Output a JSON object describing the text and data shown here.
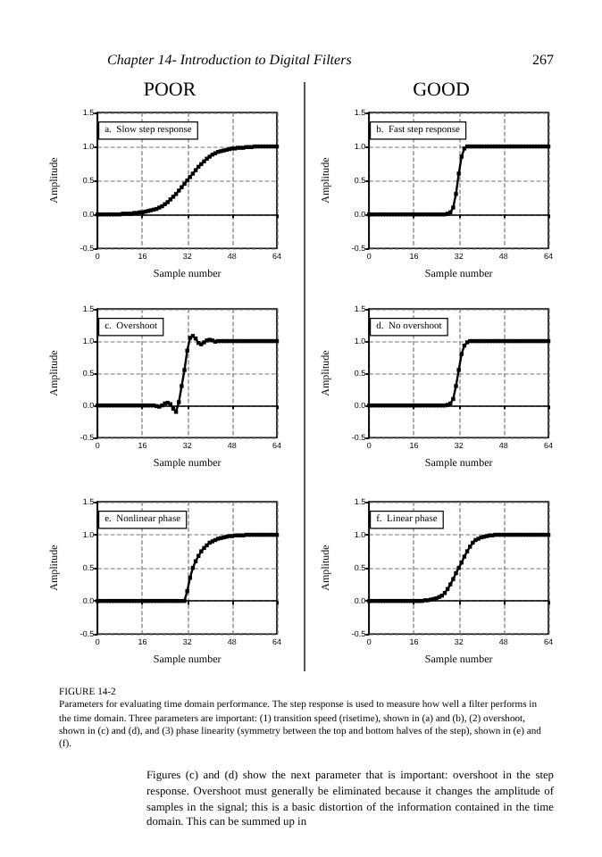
{
  "chart_data": [
    {
      "type": "line",
      "title": "POOR",
      "subtitle": "a.  Slow step response",
      "xlabel": "Sample number",
      "ylabel": "Amplitude",
      "annotations": [
        "Chapter 14- Introduction to Digital Filters",
        "267"
      ],
      "xlim": [
        0,
        64
      ],
      "xticks": [
        0,
        16,
        32,
        48,
        64
      ],
      "ylim": [
        -0.5,
        1.5
      ],
      "yticks": [
        {
          "value": -0.5,
          "label": "-0.5"
        },
        {
          "value": 0,
          "label": "0.0"
        },
        {
          "value": 0.5,
          "label": "0.5"
        },
        {
          "value": 1,
          "label": "1.0"
        },
        {
          "value": 1.5,
          "label": "1.5"
        }
      ],
      "grid": true,
      "marker": "square",
      "line_style": "solid",
      "x": [
        0,
        1,
        2,
        3,
        4,
        5,
        6,
        7,
        8,
        9,
        10,
        11,
        12,
        13,
        14,
        15,
        16,
        17,
        18,
        19,
        20,
        21,
        22,
        23,
        24,
        25,
        26,
        27,
        28,
        29,
        30,
        31,
        32,
        33,
        34,
        35,
        36,
        37,
        38,
        39,
        40,
        41,
        42,
        43,
        44,
        45,
        46,
        47,
        48,
        49,
        50,
        51,
        52,
        53,
        54,
        55,
        56,
        57,
        58,
        59,
        60,
        61,
        62,
        63,
        64
      ],
      "series": [
        {
          "color": "#000000",
          "values": [
            0,
            0,
            0,
            0,
            0,
            0,
            0,
            0,
            0,
            0.01,
            0.01,
            0.01,
            0.01,
            0.02,
            0.02,
            0.03,
            0.03,
            0.04,
            0.05,
            0.06,
            0.07,
            0.08,
            0.1,
            0.12,
            0.15,
            0.18,
            0.22,
            0.26,
            0.3,
            0.35,
            0.4,
            0.45,
            0.5,
            0.55,
            0.6,
            0.65,
            0.7,
            0.74,
            0.78,
            0.82,
            0.85,
            0.88,
            0.9,
            0.92,
            0.93,
            0.94,
            0.95,
            0.96,
            0.97,
            0.97,
            0.98,
            0.98,
            0.98,
            0.99,
            0.99,
            0.99,
            1,
            1,
            1,
            1,
            1,
            1,
            1,
            1,
            1
          ]
        }
      ]
    },
    {
      "type": "line",
      "title": "GOOD",
      "subtitle": "b.  Fast step response",
      "xlabel": "Sample number",
      "ylabel": "Amplitude",
      "xlim": [
        0,
        64
      ],
      "xticks": [
        0,
        16,
        32,
        48,
        64
      ],
      "ylim": [
        -0.5,
        1.5
      ],
      "yticks": [
        {
          "value": -0.5,
          "label": "-0.5"
        },
        {
          "value": 0,
          "label": "0.0"
        },
        {
          "value": 0.5,
          "label": "0.5"
        },
        {
          "value": 1,
          "label": "1.0"
        },
        {
          "value": 1.5,
          "label": "1.5"
        }
      ],
      "grid": true,
      "marker": "square",
      "line_style": "solid",
      "x": [
        0,
        1,
        2,
        3,
        4,
        5,
        6,
        7,
        8,
        9,
        10,
        11,
        12,
        13,
        14,
        15,
        16,
        17,
        18,
        19,
        20,
        21,
        22,
        23,
        24,
        25,
        26,
        27,
        28,
        29,
        30,
        31,
        32,
        33,
        34,
        35,
        36,
        37,
        38,
        39,
        40,
        41,
        42,
        43,
        44,
        45,
        46,
        47,
        48,
        49,
        50,
        51,
        52,
        53,
        54,
        55,
        56,
        57,
        58,
        59,
        60,
        61,
        62,
        63,
        64
      ],
      "series": [
        {
          "color": "#000000",
          "values": [
            0,
            0,
            0,
            0,
            0,
            0,
            0,
            0,
            0,
            0,
            0,
            0,
            0,
            0,
            0,
            0,
            0,
            0,
            0,
            0,
            0,
            0,
            0,
            0,
            0,
            0,
            0,
            0,
            0.01,
            0.03,
            0.1,
            0.3,
            0.6,
            0.85,
            0.97,
            1,
            1,
            1,
            1,
            1,
            1,
            1,
            1,
            1,
            1,
            1,
            1,
            1,
            1,
            1,
            1,
            1,
            1,
            1,
            1,
            1,
            1,
            1,
            1,
            1,
            1,
            1,
            1,
            1,
            1
          ]
        }
      ]
    },
    {
      "type": "line",
      "subtitle": "c.  Overshoot",
      "xlabel": "Sample number",
      "ylabel": "Amplitude",
      "xlim": [
        0,
        64
      ],
      "xticks": [
        0,
        16,
        32,
        48,
        64
      ],
      "ylim": [
        -0.5,
        1.5
      ],
      "yticks": [
        {
          "value": -0.5,
          "label": "-0.5"
        },
        {
          "value": 0,
          "label": "0.0"
        },
        {
          "value": 0.5,
          "label": "0.5"
        },
        {
          "value": 1,
          "label": "1.0"
        },
        {
          "value": 1.5,
          "label": "1.5"
        }
      ],
      "grid": true,
      "marker": "square",
      "line_style": "solid",
      "x": [
        0,
        1,
        2,
        3,
        4,
        5,
        6,
        7,
        8,
        9,
        10,
        11,
        12,
        13,
        14,
        15,
        16,
        17,
        18,
        19,
        20,
        21,
        22,
        23,
        24,
        25,
        26,
        27,
        28,
        29,
        30,
        31,
        32,
        33,
        34,
        35,
        36,
        37,
        38,
        39,
        40,
        41,
        42,
        43,
        44,
        45,
        46,
        47,
        48,
        49,
        50,
        51,
        52,
        53,
        54,
        55,
        56,
        57,
        58,
        59,
        60,
        61,
        62,
        63,
        64
      ],
      "series": [
        {
          "color": "#000000",
          "values": [
            0,
            0,
            0,
            0,
            0,
            0,
            0,
            0,
            0,
            0,
            0,
            0,
            0,
            0,
            0,
            0,
            0,
            0,
            0,
            0,
            0,
            -0.01,
            -0.02,
            0,
            0.03,
            0.04,
            0.02,
            -0.05,
            -0.1,
            0.05,
            0.3,
            0.55,
            0.85,
            1.05,
            1.08,
            1.04,
            0.97,
            0.95,
            0.98,
            1.01,
            1.02,
            1.01,
            0.99,
            1,
            1,
            1,
            1,
            1,
            1,
            1,
            1,
            1,
            1,
            1,
            1,
            1,
            1,
            1,
            1,
            1,
            1,
            1,
            1,
            1,
            1
          ]
        }
      ]
    },
    {
      "type": "line",
      "subtitle": "d.  No overshoot",
      "xlabel": "Sample number",
      "ylabel": "Amplitude",
      "xlim": [
        0,
        64
      ],
      "xticks": [
        0,
        16,
        32,
        48,
        64
      ],
      "ylim": [
        -0.5,
        1.5
      ],
      "yticks": [
        {
          "value": -0.5,
          "label": "-0.5"
        },
        {
          "value": 0,
          "label": "0.0"
        },
        {
          "value": 0.5,
          "label": "0.5"
        },
        {
          "value": 1,
          "label": "1.0"
        },
        {
          "value": 1.5,
          "label": "1.5"
        }
      ],
      "grid": true,
      "marker": "square",
      "line_style": "solid",
      "x": [
        0,
        1,
        2,
        3,
        4,
        5,
        6,
        7,
        8,
        9,
        10,
        11,
        12,
        13,
        14,
        15,
        16,
        17,
        18,
        19,
        20,
        21,
        22,
        23,
        24,
        25,
        26,
        27,
        28,
        29,
        30,
        31,
        32,
        33,
        34,
        35,
        36,
        37,
        38,
        39,
        40,
        41,
        42,
        43,
        44,
        45,
        46,
        47,
        48,
        49,
        50,
        51,
        52,
        53,
        54,
        55,
        56,
        57,
        58,
        59,
        60,
        61,
        62,
        63,
        64
      ],
      "series": [
        {
          "color": "#000000",
          "values": [
            0,
            0,
            0,
            0,
            0,
            0,
            0,
            0,
            0,
            0,
            0,
            0,
            0,
            0,
            0,
            0,
            0,
            0,
            0,
            0,
            0,
            0,
            0,
            0,
            0,
            0,
            0,
            0,
            0.01,
            0.03,
            0.1,
            0.3,
            0.55,
            0.8,
            0.93,
            0.98,
            1,
            1,
            1,
            1,
            1,
            1,
            1,
            1,
            1,
            1,
            1,
            1,
            1,
            1,
            1,
            1,
            1,
            1,
            1,
            1,
            1,
            1,
            1,
            1,
            1,
            1,
            1,
            1,
            1
          ]
        }
      ]
    },
    {
      "type": "line",
      "subtitle": "e.  Nonlinear phase",
      "xlabel": "Sample number",
      "ylabel": "Amplitude",
      "xlim": [
        0,
        64
      ],
      "xticks": [
        0,
        16,
        32,
        48,
        64
      ],
      "ylim": [
        -0.5,
        1.5
      ],
      "yticks": [
        {
          "value": -0.5,
          "label": "-0.5"
        },
        {
          "value": 0,
          "label": "0.0"
        },
        {
          "value": 0.5,
          "label": "0.5"
        },
        {
          "value": 1,
          "label": "1.0"
        },
        {
          "value": 1.5,
          "label": "1.5"
        }
      ],
      "grid": true,
      "marker": "square",
      "line_style": "solid",
      "x": [
        0,
        1,
        2,
        3,
        4,
        5,
        6,
        7,
        8,
        9,
        10,
        11,
        12,
        13,
        14,
        15,
        16,
        17,
        18,
        19,
        20,
        21,
        22,
        23,
        24,
        25,
        26,
        27,
        28,
        29,
        30,
        31,
        32,
        33,
        34,
        35,
        36,
        37,
        38,
        39,
        40,
        41,
        42,
        43,
        44,
        45,
        46,
        47,
        48,
        49,
        50,
        51,
        52,
        53,
        54,
        55,
        56,
        57,
        58,
        59,
        60,
        61,
        62,
        63,
        64
      ],
      "series": [
        {
          "color": "#000000",
          "values": [
            0,
            0,
            0,
            0,
            0,
            0,
            0,
            0,
            0,
            0,
            0,
            0,
            0,
            0,
            0,
            0,
            0,
            0,
            0,
            0,
            0,
            0,
            0,
            0,
            0,
            0,
            0,
            0,
            0,
            0,
            0,
            0,
            0.15,
            0.35,
            0.5,
            0.6,
            0.68,
            0.75,
            0.8,
            0.84,
            0.88,
            0.9,
            0.92,
            0.94,
            0.95,
            0.96,
            0.97,
            0.98,
            0.98,
            0.99,
            0.99,
            0.99,
            0.99,
            1,
            1,
            1,
            1,
            1,
            1,
            1,
            1,
            1,
            1,
            1,
            1
          ]
        }
      ]
    },
    {
      "type": "line",
      "subtitle": "f.  Linear phase",
      "xlabel": "Sample number",
      "ylabel": "Amplitude",
      "annotations": [
        "FIGURE 14-2",
        "Parameters for evaluating time domain performance.  The step response is used to measure how well a filter performs in the time domain.  Three parameters are important: (1) transition speed (risetime), shown in (a) and (b), (2) overshoot, shown in (c) and (d), and (3) phase linearity (symmetry between the top and bottom halves of the step), shown in (e) and (f).",
        "Figures (c) and (d) show the next parameter that is important: overshoot in the step response.  Overshoot must generally be eliminated because it changes the amplitude of samples in the signal; this is a basic distortion of the information contained in the time domain.  This can be summed up in"
      ],
      "xlim": [
        0,
        64
      ],
      "xticks": [
        0,
        16,
        32,
        48,
        64
      ],
      "ylim": [
        -0.5,
        1.5
      ],
      "yticks": [
        {
          "value": -0.5,
          "label": "-0.5"
        },
        {
          "value": 0,
          "label": "0.0"
        },
        {
          "value": 0.5,
          "label": "0.5"
        },
        {
          "value": 1,
          "label": "1.0"
        },
        {
          "value": 1.5,
          "label": "1.5"
        }
      ],
      "grid": true,
      "marker": "square",
      "line_style": "solid",
      "x": [
        0,
        1,
        2,
        3,
        4,
        5,
        6,
        7,
        8,
        9,
        10,
        11,
        12,
        13,
        14,
        15,
        16,
        17,
        18,
        19,
        20,
        21,
        22,
        23,
        24,
        25,
        26,
        27,
        28,
        29,
        30,
        31,
        32,
        33,
        34,
        35,
        36,
        37,
        38,
        39,
        40,
        41,
        42,
        43,
        44,
        45,
        46,
        47,
        48,
        49,
        50,
        51,
        52,
        53,
        54,
        55,
        56,
        57,
        58,
        59,
        60,
        61,
        62,
        63,
        64
      ],
      "series": [
        {
          "color": "#000000",
          "values": [
            0,
            0,
            0,
            0,
            0,
            0,
            0,
            0,
            0,
            0,
            0,
            0,
            0,
            0,
            0,
            0,
            0,
            0,
            0,
            0,
            0.01,
            0.01,
            0.02,
            0.03,
            0.04,
            0.06,
            0.08,
            0.12,
            0.18,
            0.25,
            0.33,
            0.42,
            0.5,
            0.58,
            0.67,
            0.75,
            0.82,
            0.88,
            0.92,
            0.94,
            0.96,
            0.97,
            0.98,
            0.99,
            0.99,
            1,
            1,
            1,
            1,
            1,
            1,
            1,
            1,
            1,
            1,
            1,
            1,
            1,
            1,
            1,
            1,
            1,
            1,
            1,
            1
          ]
        }
      ]
    }
  ]
}
